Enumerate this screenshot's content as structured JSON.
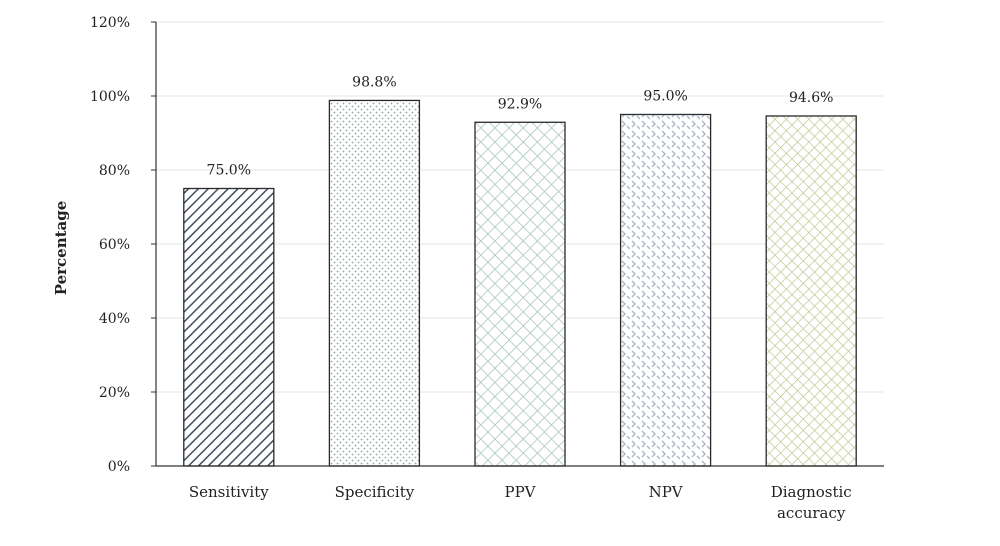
{
  "chart_data": {
    "type": "bar",
    "title": "",
    "xlabel": "",
    "ylabel": "Percentage",
    "ylim": [
      0,
      120
    ],
    "yticks": [
      "0%",
      "20%",
      "40%",
      "60%",
      "80%",
      "100%",
      "120%"
    ],
    "grid": true,
    "categories": [
      "Sensitivity",
      "Specificity",
      "PPV",
      "NPV",
      "Diagnostic accuracy"
    ],
    "category_lines": [
      [
        "Sensitivity"
      ],
      [
        "Specificity"
      ],
      [
        "PPV"
      ],
      [
        "NPV"
      ],
      [
        "Diagnostic",
        "accuracy"
      ]
    ],
    "values": [
      75.0,
      98.8,
      92.9,
      95.0,
      94.6
    ],
    "data_labels": [
      "75.0%",
      "98.8%",
      "92.9%",
      "95.0%",
      "94.6%"
    ],
    "patterns": [
      "diagonal-stripes",
      "dots",
      "crosshatch",
      "zigzag",
      "grid"
    ],
    "colors": {
      "sensitivity": "#3f4f5f",
      "specificity": "#8fa8a0",
      "ppv": "#a8c8b8",
      "npv": "#a8b8c8",
      "diagnostic_accuracy": "#bcc890",
      "axis": "#333333",
      "gridline": "#e4e4e4"
    }
  }
}
